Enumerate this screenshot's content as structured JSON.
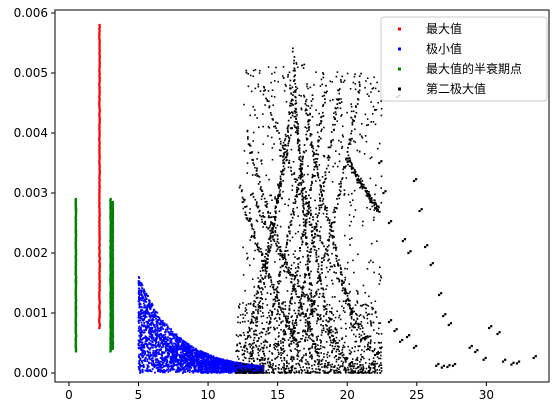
{
  "chart_data": {
    "type": "scatter",
    "title": "",
    "xlabel": "",
    "ylabel": "",
    "xlim": [
      -1.0,
      34.5
    ],
    "ylim": [
      -0.00015,
      0.00605
    ],
    "xticks": [
      "0",
      "5",
      "10",
      "15",
      "20",
      "25",
      "30"
    ],
    "xtick_values": [
      0,
      5,
      10,
      15,
      20,
      25,
      30
    ],
    "yticks": [
      "0.000",
      "0.001",
      "0.002",
      "0.003",
      "0.004",
      "0.005",
      "0.006"
    ],
    "ytick_values": [
      0,
      0.001,
      0.002,
      0.003,
      0.004,
      0.005,
      0.006
    ],
    "grid": false,
    "legend_position": "upper right",
    "series": [
      {
        "name": "最大值",
        "color": "#ff0000",
        "vertical_segments": [
          {
            "x": 2.2,
            "y_min": 0.00075,
            "y_max": 0.0058
          }
        ]
      },
      {
        "name": "极小值",
        "color": "#0000ff",
        "band": {
          "x_start": 5.0,
          "x_end": 14.0,
          "y_upper_start": 0.00162,
          "y_upper_end": 5e-05,
          "y_lower": 0.0
        }
      },
      {
        "name": "最大值的半衰期点",
        "color": "#008000",
        "vertical_segments": [
          {
            "x": 0.5,
            "y_min": 0.00036,
            "y_max": 0.0029
          },
          {
            "x": 3.0,
            "y_min": 0.00036,
            "y_max": 0.0029
          },
          {
            "x": 3.15,
            "y_min": 0.0004,
            "y_max": 0.00285
          }
        ]
      },
      {
        "name": "第二极大值",
        "color": "#000000",
        "dense_region": {
          "x_start": 12.0,
          "x_end": 22.5,
          "y_max": 0.0055
        },
        "sparse_points": [
          [
            22.3,
            0.0035
          ],
          [
            22.6,
            0.003
          ],
          [
            23.0,
            0.0025
          ],
          [
            23.6,
            0.0046
          ],
          [
            24.0,
            0.0022
          ],
          [
            24.4,
            0.002
          ],
          [
            24.8,
            0.0032
          ],
          [
            25.2,
            0.0027
          ],
          [
            25.6,
            0.0021
          ],
          [
            26.0,
            0.0018
          ],
          [
            26.6,
            0.0013
          ],
          [
            26.9,
            0.00095
          ],
          [
            27.3,
            0.0008
          ],
          [
            26.4,
            0.00012
          ],
          [
            26.8,
            9e-05
          ],
          [
            27.2,
            0.0001
          ],
          [
            27.6,
            0.00012
          ],
          [
            28.8,
            0.00042
          ],
          [
            29.2,
            0.00035
          ],
          [
            29.8,
            0.00022
          ],
          [
            30.2,
            0.00075
          ],
          [
            30.8,
            0.00065
          ],
          [
            31.2,
            0.00019
          ],
          [
            31.8,
            0.00014
          ],
          [
            32.2,
            0.00016
          ],
          [
            33.4,
            0.00025
          ],
          [
            23.0,
            0.00085
          ],
          [
            23.4,
            0.0007
          ],
          [
            23.8,
            0.00052
          ],
          [
            24.3,
            0.0006
          ],
          [
            24.8,
            0.00042
          ],
          [
            21.0,
            0.00055
          ],
          [
            21.5,
            0.0004
          ],
          [
            22.0,
            0.0003
          ],
          [
            20.2,
            0.00015
          ],
          [
            20.8,
            0.0001
          ]
        ]
      }
    ]
  }
}
